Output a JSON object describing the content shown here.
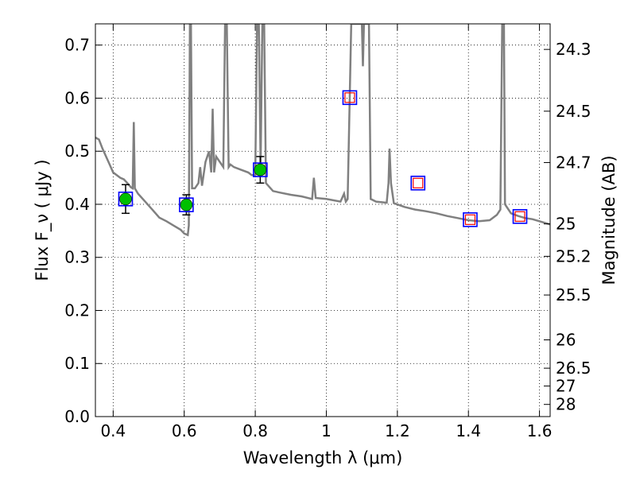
{
  "chart_data": {
    "type": "line",
    "xlabel": "Wavelength  λ (μm)",
    "ylabel": "Flux  F_ν  ( μJy )",
    "ylabel_right": "Magnitude (AB)",
    "xlim": [
      0.35,
      1.63
    ],
    "ylim": [
      0.0,
      0.74
    ],
    "grid": true,
    "x_ticks": [
      0.4,
      0.6,
      0.8,
      1.0,
      1.2,
      1.4,
      1.6
    ],
    "x_tick_labels": [
      "0.4",
      "0.6",
      "0.8",
      "1",
      "1.2",
      "1.4",
      "1.6"
    ],
    "y_ticks": [
      0.0,
      0.1,
      0.2,
      0.3,
      0.4,
      0.5,
      0.6,
      0.7
    ],
    "y_tick_labels": [
      "0.0",
      "0.1",
      "0.2",
      "0.3",
      "0.4",
      "0.5",
      "0.6",
      "0.7"
    ],
    "right_ticks": [
      {
        "label": "24.3",
        "value": 24.3
      },
      {
        "label": "24.5",
        "value": 24.5
      },
      {
        "label": "24.7",
        "value": 24.7
      },
      {
        "label": "25",
        "value": 25.0
      },
      {
        "label": "25.2",
        "value": 25.2
      },
      {
        "label": "25.5",
        "value": 25.5
      },
      {
        "label": "26",
        "value": 26.0
      },
      {
        "label": "26.5",
        "value": 26.5
      },
      {
        "label": "27",
        "value": 27.0
      },
      {
        "label": "28",
        "value": 28.0
      }
    ],
    "series": [
      {
        "style": "spectrum",
        "color": "#808080",
        "points": [
          [
            0.35,
            0.526
          ],
          [
            0.36,
            0.522
          ],
          [
            0.37,
            0.505
          ],
          [
            0.38,
            0.49
          ],
          [
            0.39,
            0.475
          ],
          [
            0.4,
            0.46
          ],
          [
            0.41,
            0.455
          ],
          [
            0.42,
            0.45
          ],
          [
            0.43,
            0.447
          ],
          [
            0.44,
            0.44
          ],
          [
            0.45,
            0.432
          ],
          [
            0.455,
            0.43
          ],
          [
            0.458,
            0.555
          ],
          [
            0.461,
            0.43
          ],
          [
            0.47,
            0.42
          ],
          [
            0.49,
            0.405
          ],
          [
            0.51,
            0.39
          ],
          [
            0.53,
            0.375
          ],
          [
            0.55,
            0.368
          ],
          [
            0.57,
            0.36
          ],
          [
            0.59,
            0.352
          ],
          [
            0.6,
            0.345
          ],
          [
            0.61,
            0.342
          ],
          [
            0.613,
            0.36
          ],
          [
            0.616,
            0.74
          ],
          [
            0.619,
            0.74
          ],
          [
            0.622,
            0.43
          ],
          [
            0.63,
            0.43
          ],
          [
            0.64,
            0.44
          ],
          [
            0.645,
            0.47
          ],
          [
            0.65,
            0.435
          ],
          [
            0.66,
            0.48
          ],
          [
            0.67,
            0.5
          ],
          [
            0.676,
            0.46
          ],
          [
            0.68,
            0.58
          ],
          [
            0.684,
            0.46
          ],
          [
            0.69,
            0.49
          ],
          [
            0.7,
            0.48
          ],
          [
            0.71,
            0.47
          ],
          [
            0.715,
            0.74
          ],
          [
            0.72,
            0.74
          ],
          [
            0.725,
            0.47
          ],
          [
            0.73,
            0.475
          ],
          [
            0.74,
            0.47
          ],
          [
            0.76,
            0.465
          ],
          [
            0.78,
            0.46
          ],
          [
            0.79,
            0.455
          ],
          [
            0.8,
            0.455
          ],
          [
            0.805,
            0.74
          ],
          [
            0.81,
            0.74
          ],
          [
            0.815,
            0.47
          ],
          [
            0.82,
            0.74
          ],
          [
            0.825,
            0.74
          ],
          [
            0.83,
            0.44
          ],
          [
            0.85,
            0.425
          ],
          [
            0.87,
            0.422
          ],
          [
            0.9,
            0.418
          ],
          [
            0.93,
            0.415
          ],
          [
            0.96,
            0.41
          ],
          [
            0.965,
            0.45
          ],
          [
            0.97,
            0.412
          ],
          [
            1.0,
            0.41
          ],
          [
            1.04,
            0.405
          ],
          [
            1.05,
            0.42
          ],
          [
            1.055,
            0.405
          ],
          [
            1.06,
            0.41
          ],
          [
            1.07,
            0.74
          ],
          [
            1.1,
            0.74
          ],
          [
            1.103,
            0.66
          ],
          [
            1.106,
            0.74
          ],
          [
            1.12,
            0.74
          ],
          [
            1.125,
            0.41
          ],
          [
            1.14,
            0.405
          ],
          [
            1.17,
            0.403
          ],
          [
            1.175,
            0.44
          ],
          [
            1.178,
            0.505
          ],
          [
            1.182,
            0.44
          ],
          [
            1.19,
            0.402
          ],
          [
            1.22,
            0.395
          ],
          [
            1.25,
            0.39
          ],
          [
            1.28,
            0.387
          ],
          [
            1.31,
            0.383
          ],
          [
            1.34,
            0.378
          ],
          [
            1.37,
            0.374
          ],
          [
            1.4,
            0.37
          ],
          [
            1.43,
            0.368
          ],
          [
            1.46,
            0.37
          ],
          [
            1.48,
            0.38
          ],
          [
            1.49,
            0.39
          ],
          [
            1.495,
            0.74
          ],
          [
            1.5,
            0.74
          ],
          [
            1.503,
            0.4
          ],
          [
            1.52,
            0.383
          ],
          [
            1.54,
            0.378
          ],
          [
            1.56,
            0.374
          ],
          [
            1.58,
            0.372
          ],
          [
            1.6,
            0.368
          ],
          [
            1.63,
            0.362
          ]
        ]
      },
      {
        "style": "observed",
        "color": "#00c000",
        "points": [
          {
            "x": 0.435,
            "y": 0.41,
            "yerr": 0.027
          },
          {
            "x": 0.606,
            "y": 0.399,
            "yerr": 0.019
          },
          {
            "x": 0.814,
            "y": 0.465,
            "yerr": 0.025
          }
        ]
      },
      {
        "style": "model-blue-squares",
        "color": "#0000ff",
        "points": [
          [
            0.435,
            0.41
          ],
          [
            0.606,
            0.399
          ],
          [
            0.814,
            0.465
          ],
          [
            1.066,
            0.601
          ],
          [
            1.258,
            0.44
          ],
          [
            1.405,
            0.371
          ],
          [
            1.545,
            0.377
          ]
        ]
      },
      {
        "style": "model-red-squares",
        "color": "#ff0000",
        "points": [
          [
            1.066,
            0.601
          ],
          [
            1.258,
            0.44
          ],
          [
            1.405,
            0.371
          ],
          [
            1.545,
            0.377
          ]
        ]
      }
    ]
  }
}
